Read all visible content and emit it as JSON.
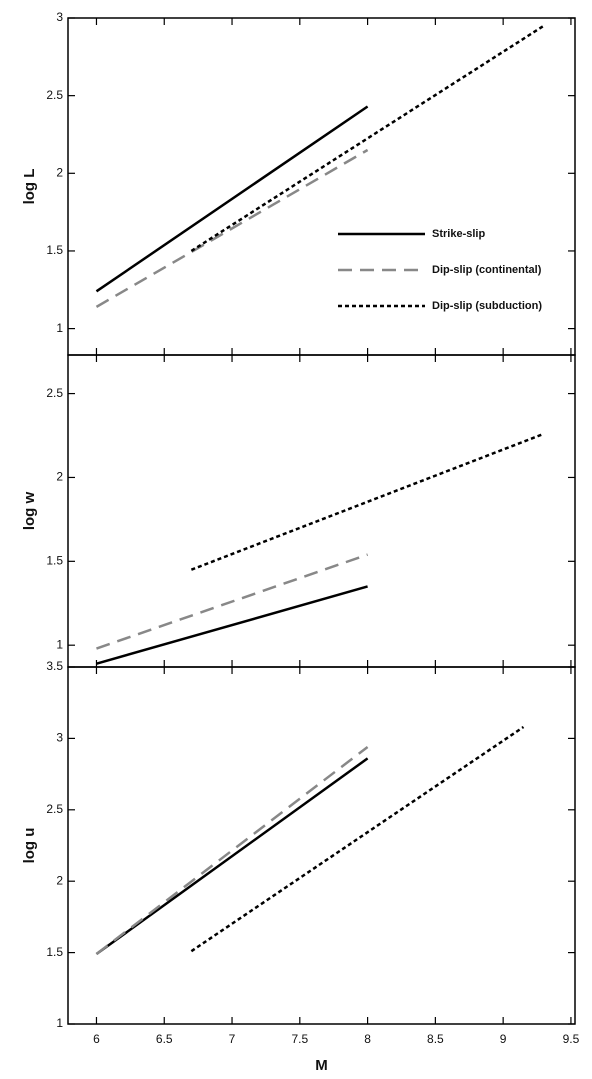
{
  "chart_data": [
    {
      "type": "line",
      "ylabel": "log L",
      "xlim": [
        5.79,
        9.53
      ],
      "xticks": [
        6,
        6.5,
        7,
        7.5,
        8,
        8.5,
        9,
        9.5
      ],
      "ylim": [
        0.83,
        3
      ],
      "yticks": [
        1,
        1.5,
        2,
        2.5,
        3
      ],
      "legend": "lower right",
      "series": [
        {
          "name": "Strike-slip",
          "color": "#000000",
          "linestyle": "solid",
          "x": [
            6,
            8
          ],
          "values": [
            1.24,
            2.43
          ]
        },
        {
          "name": "Dip-slip (continental)",
          "color": "#888888",
          "linestyle": "dashed",
          "x": [
            6,
            8
          ],
          "values": [
            1.14,
            2.15
          ]
        },
        {
          "name": "Dip-slip (subduction)",
          "color": "#000000",
          "linestyle": "dotted",
          "x": [
            6.7,
            9.3
          ],
          "values": [
            1.5,
            2.95
          ]
        }
      ]
    },
    {
      "type": "line",
      "ylabel": "log w",
      "xlim": [
        5.79,
        9.53
      ],
      "xticks": [
        6,
        6.5,
        7,
        7.5,
        8,
        8.5,
        9,
        9.5
      ],
      "ylim": [
        0.87,
        2.73
      ],
      "yticks": [
        1,
        1.5,
        2,
        2.5
      ],
      "series": [
        {
          "color": "#000000",
          "linestyle": "solid",
          "x": [
            6,
            8
          ],
          "values": [
            0.89,
            1.35
          ]
        },
        {
          "color": "#888888",
          "linestyle": "dashed",
          "x": [
            6,
            8
          ],
          "values": [
            0.98,
            1.54
          ]
        },
        {
          "color": "#000000",
          "linestyle": "dotted",
          "x": [
            6.7,
            9.3
          ],
          "values": [
            1.45,
            2.26
          ]
        }
      ]
    },
    {
      "type": "line",
      "ylabel": "log u",
      "xlabel": "M",
      "xlim": [
        5.79,
        9.53
      ],
      "xticks": [
        6,
        6.5,
        7,
        7.5,
        8,
        8.5,
        9,
        9.5
      ],
      "ylim": [
        1,
        3.5
      ],
      "yticks": [
        1,
        1.5,
        2,
        2.5,
        3,
        3.5
      ],
      "series": [
        {
          "color": "#000000",
          "linestyle": "solid",
          "x": [
            6,
            8
          ],
          "values": [
            1.49,
            2.86
          ]
        },
        {
          "color": "#888888",
          "linestyle": "dashed",
          "x": [
            6,
            8
          ],
          "values": [
            1.49,
            2.94
          ]
        },
        {
          "color": "#000000",
          "linestyle": "dotted",
          "x": [
            6.7,
            9.15
          ],
          "values": [
            1.51,
            3.08
          ]
        }
      ]
    }
  ]
}
